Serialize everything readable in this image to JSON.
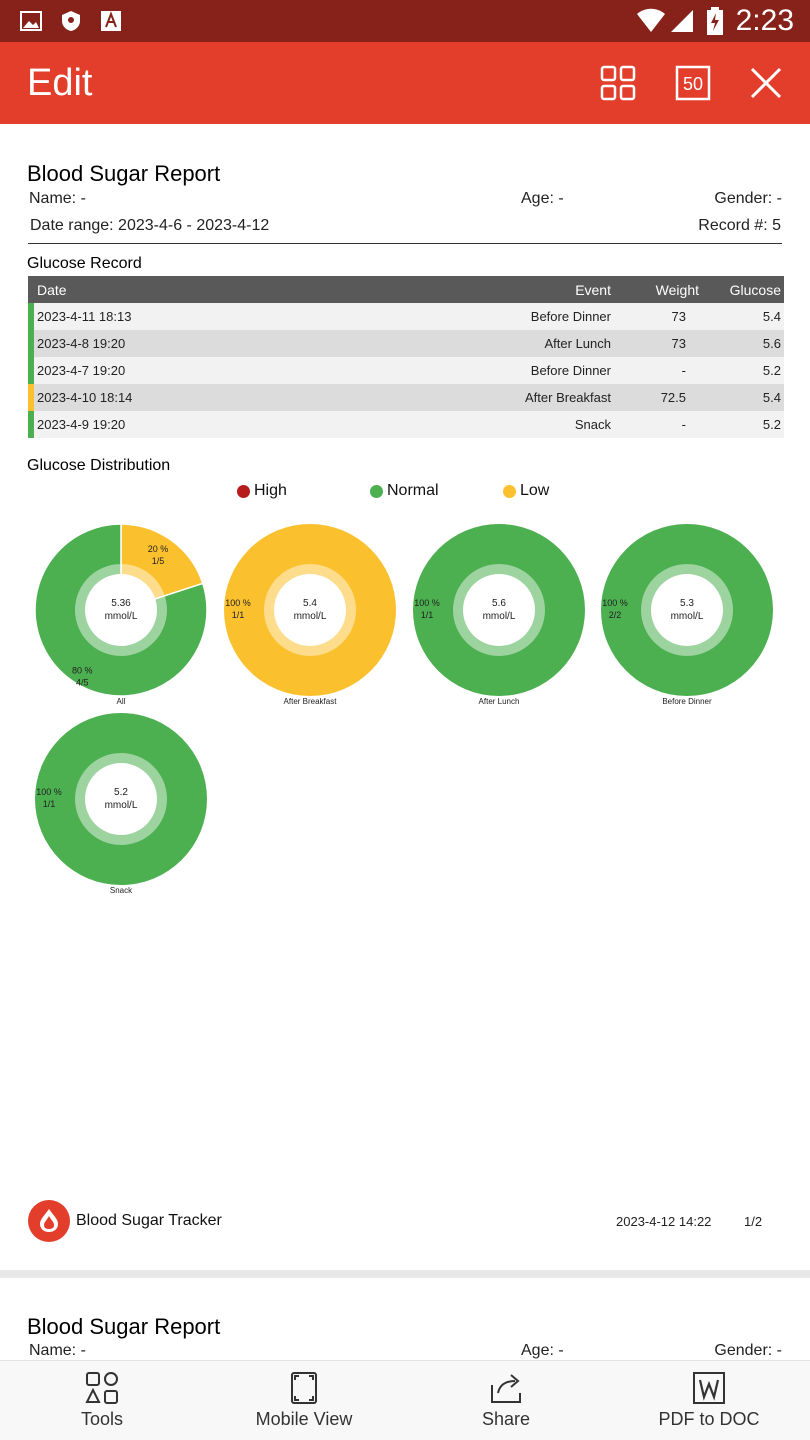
{
  "status_bar": {
    "time": "2:23",
    "left_icons": [
      "image-icon",
      "shield-icon",
      "font-a-icon"
    ],
    "right_icons": [
      "wifi-icon",
      "signal-icon",
      "battery-charging-icon"
    ]
  },
  "app_bar": {
    "title": "Edit",
    "actions": [
      "grid-view-icon",
      "page-50-icon",
      "close-icon"
    ],
    "page_badge": "50"
  },
  "report": {
    "title": "Blood Sugar Report",
    "name": "Name: -",
    "age": "Age: -",
    "gender": "Gender: -",
    "date_range": "Date range: 2023-4-6 - 2023-4-12",
    "record_count": "Record #: 5",
    "glucose_record_title": "Glucose Record",
    "table": {
      "headers": {
        "date": "Date",
        "event": "Event",
        "weight": "Weight",
        "glucose": "Glucose"
      },
      "rows": [
        {
          "date": "2023-4-11 18:13",
          "event": "Before Dinner",
          "weight": "73",
          "glucose": "5.4",
          "status_color": "#4caf50"
        },
        {
          "date": "2023-4-8 19:20",
          "event": "After Lunch",
          "weight": "73",
          "glucose": "5.6",
          "status_color": "#4caf50"
        },
        {
          "date": "2023-4-7 19:20",
          "event": "Before Dinner",
          "weight": "-",
          "glucose": "5.2",
          "status_color": "#4caf50"
        },
        {
          "date": "2023-4-10 18:14",
          "event": "After Breakfast",
          "weight": "72.5",
          "glucose": "5.4",
          "status_color": "#fbc02d"
        },
        {
          "date": "2023-4-9 19:20",
          "event": "Snack",
          "weight": "-",
          "glucose": "5.2",
          "status_color": "#4caf50"
        }
      ]
    },
    "distribution_title": "Glucose Distribution",
    "legend": [
      {
        "label": "High",
        "color": "#b71c1c"
      },
      {
        "label": "Normal",
        "color": "#4caf50"
      },
      {
        "label": "Low",
        "color": "#fbc02d"
      }
    ]
  },
  "chart_data": [
    {
      "type": "pie",
      "title": "All",
      "center_value": "5.36",
      "center_unit": "mmol/L",
      "slices": [
        {
          "label": "Low",
          "percent_label": "20 %",
          "count_label": "1/5",
          "value": 20,
          "color": "#fbc02d"
        },
        {
          "label": "Normal",
          "percent_label": "80 %",
          "count_label": "4/5",
          "value": 80,
          "color": "#4caf50"
        }
      ]
    },
    {
      "type": "pie",
      "title": "After Breakfast",
      "center_value": "5.4",
      "center_unit": "mmol/L",
      "slices": [
        {
          "label": "Low",
          "percent_label": "100 %",
          "count_label": "1/1",
          "value": 100,
          "color": "#fbc02d"
        }
      ]
    },
    {
      "type": "pie",
      "title": "After Lunch",
      "center_value": "5.6",
      "center_unit": "mmol/L",
      "slices": [
        {
          "label": "Normal",
          "percent_label": "100 %",
          "count_label": "1/1",
          "value": 100,
          "color": "#4caf50"
        }
      ]
    },
    {
      "type": "pie",
      "title": "Before Dinner",
      "center_value": "5.3",
      "center_unit": "mmol/L",
      "slices": [
        {
          "label": "Normal",
          "percent_label": "100 %",
          "count_label": "2/2",
          "value": 100,
          "color": "#4caf50"
        }
      ]
    },
    {
      "type": "pie",
      "title": "Snack",
      "center_value": "5.2",
      "center_unit": "mmol/L",
      "slices": [
        {
          "label": "Normal",
          "percent_label": "100 %",
          "count_label": "1/1",
          "value": 100,
          "color": "#4caf50"
        }
      ]
    }
  ],
  "footer": {
    "brand": "Blood Sugar Tracker",
    "date": "2023-4-12 14:22",
    "page": "1/2"
  },
  "page2": {
    "title": "Blood Sugar Report",
    "name": "Name: -",
    "age": "Age: -",
    "gender": "Gender: -"
  },
  "bottom_nav": [
    {
      "label": "Tools",
      "icon": "tools-icon"
    },
    {
      "label": "Mobile View",
      "icon": "mobile-view-icon"
    },
    {
      "label": "Share",
      "icon": "share-icon"
    },
    {
      "label": "PDF to DOC",
      "icon": "word-doc-icon"
    }
  ]
}
